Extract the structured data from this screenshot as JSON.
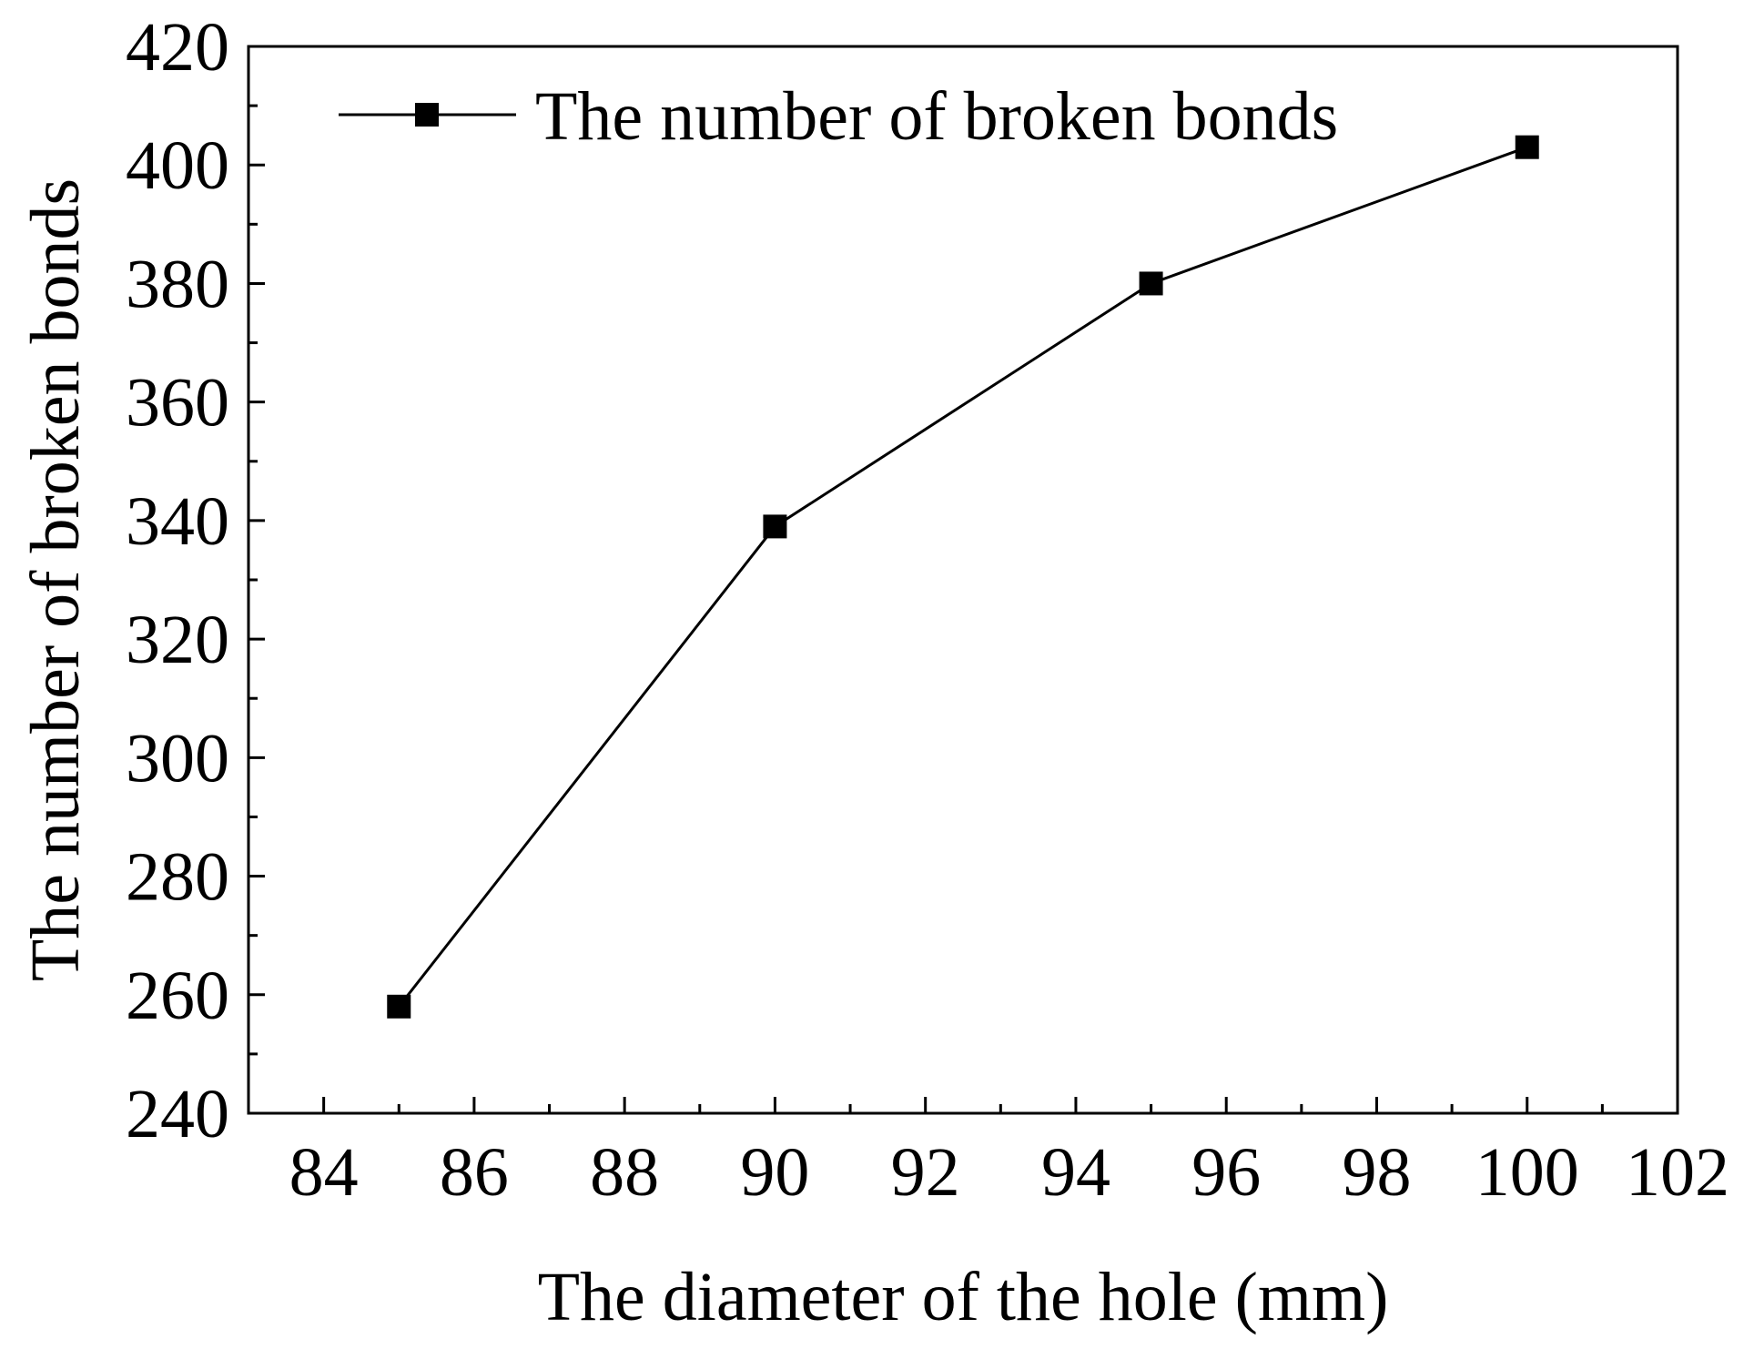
{
  "chart_data": {
    "type": "line",
    "xlabel": "The diameter of the hole (mm)",
    "ylabel": "The number of broken bonds",
    "xlim": [
      83,
      102
    ],
    "ylim": [
      240,
      420
    ],
    "x_ticks": [
      "84",
      "86",
      "88",
      "90",
      "92",
      "94",
      "96",
      "98",
      "100",
      "102"
    ],
    "y_ticks": [
      "240",
      "260",
      "280",
      "300",
      "320",
      "340",
      "360",
      "380",
      "400",
      "420"
    ],
    "x_tick_values": [
      84,
      86,
      88,
      90,
      92,
      94,
      96,
      98,
      100,
      102
    ],
    "y_tick_values": [
      240,
      260,
      280,
      300,
      320,
      340,
      360,
      380,
      400,
      420
    ],
    "x_minor_step": 1,
    "y_minor_step": 10,
    "grid": false,
    "legend_position": "top-left",
    "series": [
      {
        "name": "The number of broken bonds",
        "marker": "square",
        "color": "#000000",
        "x": [
          85,
          90,
          95,
          100
        ],
        "y": [
          258,
          339,
          380,
          403
        ]
      }
    ]
  }
}
